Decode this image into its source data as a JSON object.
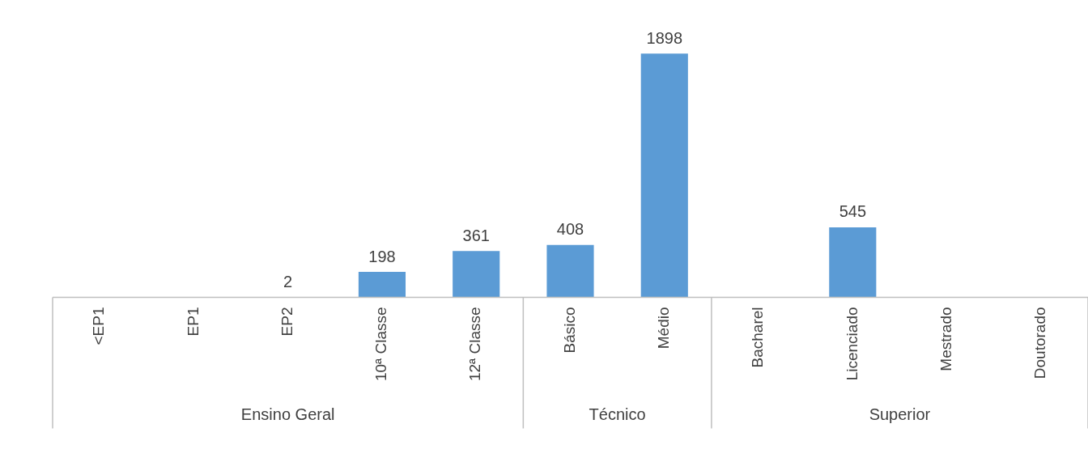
{
  "chart_data": {
    "type": "bar",
    "categories": [
      "<EP1",
      "EP1",
      "EP2",
      "10ª Classe",
      "12ª Classe",
      "Básico",
      "Médio",
      "Bacharel",
      "Licenciado",
      "Mestrado",
      "Doutorado"
    ],
    "values": [
      null,
      null,
      2,
      198,
      361,
      408,
      1898,
      null,
      545,
      null,
      null
    ],
    "color": "#5b9bd5",
    "data_labels": true,
    "grid": false,
    "legend": false,
    "tick_labels": "x",
    "annotations": [
      "Ensino Geral",
      "Técnico",
      "Superior"
    ]
  }
}
